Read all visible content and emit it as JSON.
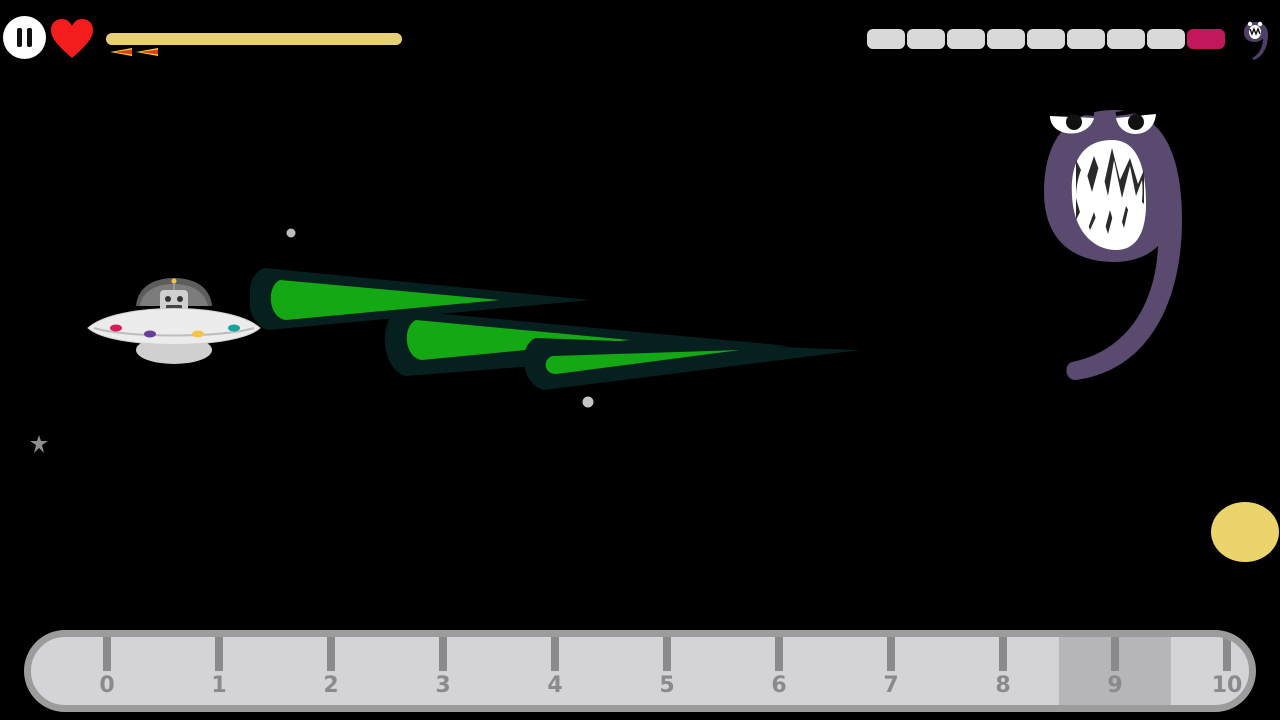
{
  "hud": {
    "pause_icon": "pause-icon",
    "heart_icon": "heart-icon",
    "health_fraction": 1.0,
    "health_color": "#e6cf74",
    "rockets": 2,
    "boss_health": {
      "segments": 9,
      "hit_segments": 1,
      "segment_color": "#d9d9d9",
      "hit_color": "#c2185b"
    },
    "boss_icon": "nine-monster-icon"
  },
  "scene": {
    "player": "ufo-robot",
    "enemy_number": "9",
    "laser_color": "#14a814",
    "monster_color": "#5a4a70",
    "coin_color": "#ecd46c"
  },
  "number_line": {
    "labels": [
      "0",
      "1",
      "2",
      "3",
      "4",
      "5",
      "6",
      "7",
      "8",
      "9",
      "10"
    ],
    "highlighted": "9"
  }
}
